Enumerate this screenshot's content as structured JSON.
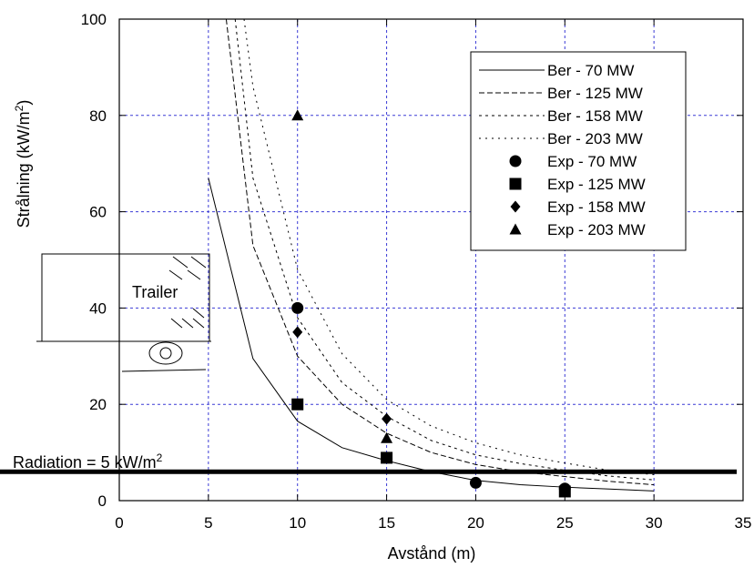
{
  "chart_data": {
    "type": "line",
    "xlabel": "Avstånd (m)",
    "ylabel_main": "Strålning  (kW/m",
    "ylabel_sup": "2",
    "ylabel_tail": ")",
    "xlim": [
      0,
      35
    ],
    "ylim": [
      0,
      100
    ],
    "xticks": [
      0,
      5,
      10,
      15,
      20,
      25,
      30,
      35
    ],
    "yticks": [
      0,
      20,
      40,
      60,
      80,
      100
    ],
    "grid": true,
    "legend_position": "top-right",
    "series": [
      {
        "name": "Ber - 70 MW",
        "kind": "line",
        "dash": "solid",
        "x": [
          5,
          7.5,
          10,
          12.5,
          15,
          17.5,
          20,
          22.5,
          25,
          27.5,
          30
        ],
        "y": [
          67,
          29.5,
          16.5,
          11,
          8.3,
          6,
          4.2,
          3.3,
          2.8,
          2.4,
          2
        ]
      },
      {
        "name": "Ber - 125 MW",
        "kind": "line",
        "dash": "dashed",
        "x": [
          6,
          7.5,
          10,
          12.5,
          15,
          17.5,
          20,
          22.5,
          25,
          27.5,
          30
        ],
        "y": [
          100,
          53,
          30,
          20,
          14,
          10,
          7.5,
          6,
          5,
          4,
          3.3
        ]
      },
      {
        "name": "Ber - 158 MW",
        "kind": "line",
        "dash": "dotted",
        "x": [
          6.5,
          7.5,
          10,
          12.5,
          15,
          17.5,
          20,
          22.5,
          25,
          27.5,
          30
        ],
        "y": [
          100,
          67,
          38,
          24.5,
          17.5,
          12.5,
          9.5,
          7.7,
          6.3,
          5.1,
          4.3
        ]
      },
      {
        "name": "Ber - 203 MW",
        "kind": "line",
        "dash": "sparse",
        "x": [
          7,
          7.5,
          10,
          12.5,
          15,
          17.5,
          20,
          22.5,
          25,
          27.5,
          30
        ],
        "y": [
          100,
          86,
          48,
          30.5,
          21,
          15.5,
          12,
          9.5,
          7.8,
          6.3,
          5.4
        ]
      },
      {
        "name": "Exp - 70 MW",
        "kind": "marker",
        "marker": "circle",
        "x": [
          10,
          20,
          25
        ],
        "y": [
          40,
          3.7,
          2.5
        ]
      },
      {
        "name": "Exp - 125 MW",
        "kind": "marker",
        "marker": "square",
        "x": [
          10,
          15,
          25
        ],
        "y": [
          20,
          8.9,
          1.9
        ]
      },
      {
        "name": "Exp - 158 MW",
        "kind": "marker",
        "marker": "diamond",
        "x": [
          10,
          15,
          25
        ],
        "y": [
          35,
          17,
          2.5
        ]
      },
      {
        "name": "Exp - 203 MW",
        "kind": "marker",
        "marker": "triangle",
        "x": [
          10,
          15
        ],
        "y": [
          80,
          13
        ]
      }
    ],
    "threshold": {
      "y": 6
    },
    "annotations": {
      "radiation_prefix": "Radiation = 5 kW/m",
      "radiation_sup": "2",
      "trailer": "Trailer"
    }
  }
}
